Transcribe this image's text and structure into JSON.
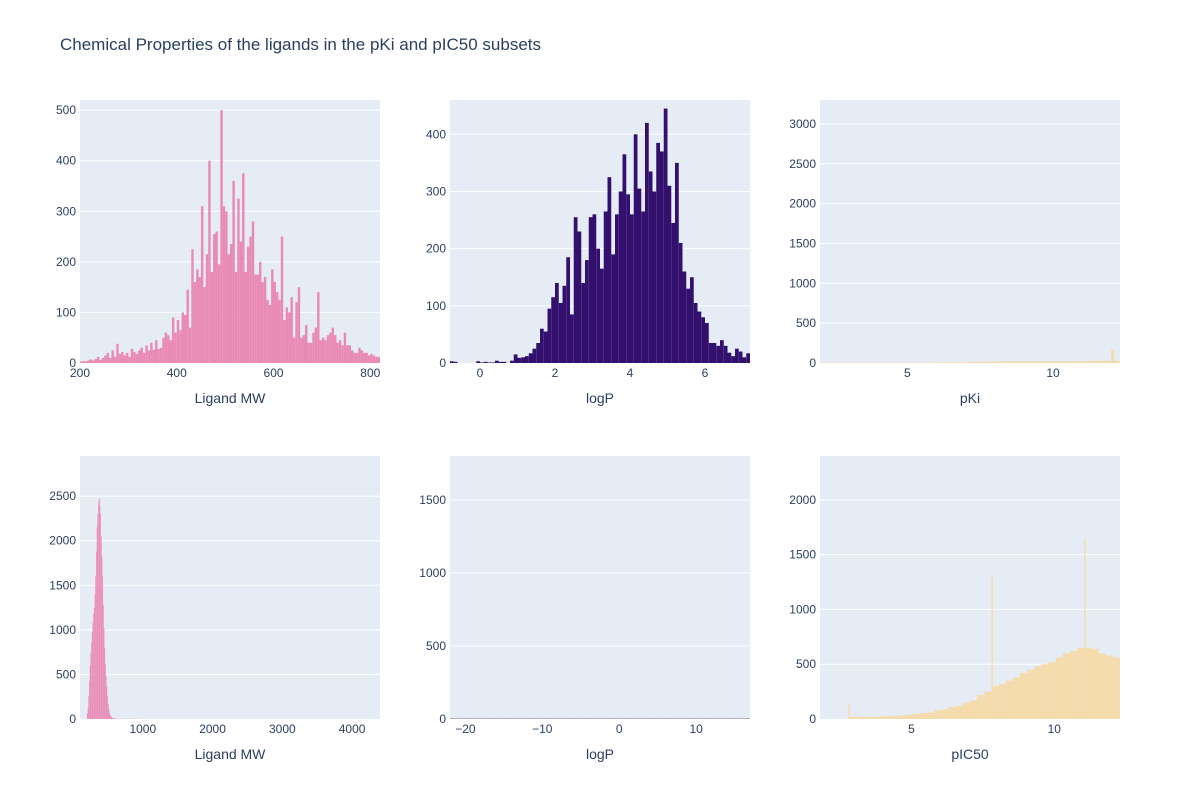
{
  "figure": {
    "title": "Chemical Properties of the ligands in the pKi and pIC50 subsets",
    "background": "#ffffff",
    "plot_background": "#e5ecf6",
    "grid_color": "#ffffff"
  },
  "chart_data": [
    {
      "type": "bar",
      "subset": "pKi",
      "color": "#e98ab5",
      "xlabel": "Ligand MW",
      "ylabel": "",
      "xlim": [
        200,
        820
      ],
      "ylim": [
        0,
        520
      ],
      "xticks": [
        200,
        400,
        600,
        800
      ],
      "yticks": [
        0,
        100,
        200,
        300,
        400,
        500
      ],
      "bin_width": 5,
      "x_start": 200,
      "values": [
        3,
        4,
        3,
        5,
        7,
        5,
        8,
        12,
        6,
        10,
        15,
        20,
        10,
        25,
        12,
        38,
        18,
        22,
        15,
        20,
        12,
        28,
        22,
        18,
        25,
        30,
        20,
        35,
        25,
        40,
        26,
        45,
        28,
        30,
        50,
        60,
        55,
        45,
        90,
        60,
        85,
        65,
        100,
        95,
        145,
        70,
        225,
        160,
        185,
        170,
        310,
        150,
        215,
        400,
        180,
        255,
        260,
        195,
        500,
        310,
        300,
        215,
        235,
        360,
        180,
        325,
        240,
        375,
        180,
        230,
        250,
        280,
        175,
        175,
        200,
        160,
        170,
        125,
        115,
        185,
        160,
        140,
        125,
        250,
        85,
        110,
        100,
        130,
        50,
        120,
        150,
        50,
        55,
        75,
        40,
        40,
        60,
        70,
        140,
        45,
        50,
        45,
        55,
        60,
        70,
        55,
        40,
        45,
        35,
        60,
        35,
        35,
        25,
        20,
        20,
        30,
        25,
        20,
        20,
        15,
        18,
        15,
        12,
        12,
        15,
        8,
        10,
        15,
        6,
        6,
        10,
        5,
        5,
        3,
        8,
        3,
        3,
        2,
        2,
        2,
        3,
        2,
        3,
        2,
        2,
        3,
        2,
        2,
        2,
        2,
        2,
        2,
        2,
        2
      ]
    },
    {
      "type": "bar",
      "subset": "pKi",
      "color": "#33106e",
      "xlabel": "logP",
      "ylabel": "",
      "xlim": [
        -0.8,
        7.2
      ],
      "ylim": [
        0,
        460
      ],
      "xticks": [
        0,
        2,
        4,
        6
      ],
      "yticks": [
        0,
        100,
        200,
        300,
        400
      ],
      "bin_width": 0.1,
      "x_start": -0.8,
      "values": [
        3,
        2,
        0,
        0,
        0,
        0,
        0,
        3,
        1,
        2,
        1,
        1,
        4,
        2,
        2,
        0,
        4,
        15,
        9,
        10,
        12,
        17,
        25,
        35,
        60,
        55,
        95,
        115,
        140,
        105,
        135,
        185,
        85,
        255,
        230,
        140,
        180,
        255,
        260,
        200,
        165,
        265,
        325,
        190,
        260,
        300,
        365,
        295,
        260,
        400,
        305,
        265,
        420,
        335,
        300,
        385,
        370,
        445,
        310,
        245,
        350,
        210,
        160,
        130,
        150,
        105,
        90,
        80,
        70,
        35,
        35,
        30,
        40,
        30,
        18,
        12,
        25,
        20,
        10,
        17,
        2,
        4,
        3,
        3,
        2,
        5,
        5,
        2
      ]
    },
    {
      "type": "bar",
      "subset": "pKi",
      "color": "#f5dba9",
      "xlabel": "pKi",
      "ylabel": "",
      "xlim": [
        2,
        12.3
      ],
      "ylim": [
        0,
        3300
      ],
      "xticks": [
        5,
        10
      ],
      "yticks": [
        0,
        500,
        1000,
        1500,
        2000,
        2500,
        3000
      ],
      "bin_width": 0.1,
      "x_start": 2,
      "values": [
        5,
        5,
        5,
        5,
        5,
        5,
        5,
        5,
        5,
        5,
        5,
        5,
        5,
        5,
        5,
        5,
        5,
        5,
        5,
        5,
        5,
        5,
        5,
        5,
        5,
        5,
        5,
        5,
        5,
        5,
        5,
        5,
        5,
        5,
        5,
        5,
        5,
        5,
        5,
        5,
        10,
        10,
        10,
        10,
        10,
        10,
        10,
        10,
        10,
        10,
        15,
        15,
        15,
        15,
        15,
        15,
        15,
        15,
        15,
        15,
        20,
        20,
        20,
        20,
        20,
        20,
        20,
        20,
        20,
        20,
        20,
        20,
        20,
        20,
        20,
        20,
        20,
        20,
        20,
        20,
        20,
        20,
        20,
        20,
        20,
        20,
        20,
        20,
        20,
        20,
        25,
        25,
        25,
        25,
        25,
        25,
        25,
        25,
        25,
        25,
        170,
        25,
        25,
        25,
        25,
        25,
        30,
        30,
        30,
        30,
        30,
        30,
        30,
        30,
        30,
        35,
        35,
        35,
        35,
        35,
        40,
        40,
        40,
        40,
        40,
        40,
        40,
        40,
        40,
        40,
        40,
        40,
        40,
        40,
        40,
        40,
        40,
        40,
        40,
        40,
        40,
        40,
        40,
        40,
        40,
        40,
        40,
        40,
        40,
        40,
        40,
        40,
        40,
        40,
        40,
        40,
        40,
        40,
        40,
        40,
        40,
        40,
        40,
        40,
        40,
        40,
        40,
        40,
        40,
        40,
        40,
        40,
        40,
        40,
        40,
        40,
        40,
        40,
        40,
        40,
        40,
        40,
        40,
        40,
        40,
        40,
        40,
        40,
        40,
        40
      ]
    },
    {
      "type": "bar",
      "subset": "pIC50",
      "color": "#e98ab5",
      "xlabel": "Ligand MW",
      "ylabel": "",
      "xlim": [
        100,
        4400
      ],
      "ylim": [
        0,
        2950
      ],
      "xticks": [
        1000,
        2000,
        3000,
        4000
      ],
      "yticks": [
        0,
        500,
        1000,
        1500,
        2000,
        2500
      ],
      "bin_width": 10,
      "x_start": 200,
      "values": [
        60,
        120,
        260,
        420,
        600,
        740,
        860,
        980,
        1080,
        1180,
        1250,
        1400,
        1600,
        1880,
        2150,
        2300,
        2450,
        2400,
        2480,
        2300,
        2050,
        1820,
        1600,
        1280,
        1020,
        800,
        620,
        480,
        360,
        260,
        170,
        110,
        70,
        45,
        30,
        20,
        14,
        10,
        8,
        6,
        5,
        4,
        3,
        3,
        2,
        2,
        2,
        2,
        2,
        2,
        2,
        2,
        2,
        2,
        2,
        2,
        2,
        2,
        2,
        2,
        2,
        2,
        2,
        2,
        2,
        2,
        2,
        2,
        2,
        2,
        2,
        2
      ]
    },
    {
      "type": "bar",
      "subset": "pIC50",
      "color": "#33106e",
      "xlabel": "logP",
      "ylabel": "",
      "xlim": [
        -22,
        17
      ],
      "ylim": [
        0,
        1800
      ],
      "xticks": [
        -20,
        -10,
        0,
        10
      ],
      "yticks": [
        0,
        500,
        1000,
        1500
      ],
      "bin_width": 0.2,
      "x_start": -22,
      "values": [
        2,
        2,
        2,
        2,
        2,
        2,
        2,
        2,
        2,
        2,
        2,
        2,
        2,
        2,
        2,
        2,
        2,
        2,
        2,
        2,
        2,
        2,
        2,
        2,
        2,
        2,
        2,
        2,
        2,
        2,
        2,
        2,
        2,
        2,
        2,
        2,
        2,
        2,
        2,
        2,
        2,
        2,
        2,
        2,
        2,
        2,
        2,
        2,
        2,
        2,
        2,
        2,
        2,
        2,
        2,
        2,
        2,
        2,
        2,
        2,
        2,
        2,
        2,
        2,
        2,
        2,
        2,
        2,
        2,
        2,
        2,
        2,
        2,
        2,
        2,
        2,
        2,
        2,
        2,
        2,
        2,
        2,
        2,
        2,
        2,
        2,
        2,
        2,
        2,
        2,
        2,
        2,
        2,
        2,
        2,
        2,
        2,
        2,
        2,
        2,
        2,
        2,
        2,
        2,
        2,
        2,
        2,
        2,
        2,
        2,
        2,
        2,
        2,
        2,
        2,
        2,
        2,
        2,
        2,
        2,
        2,
        2,
        2,
        2,
        2,
        2,
        2,
        2,
        2,
        2,
        2,
        2,
        2,
        2,
        2,
        2,
        2,
        2,
        2,
        2,
        2,
        2,
        2,
        2,
        2,
        2,
        2,
        2,
        2,
        2,
        2,
        2,
        2,
        2,
        2,
        2,
        2,
        2,
        2,
        2,
        2,
        2,
        2,
        2,
        2,
        2,
        2,
        2,
        2,
        2,
        2,
        2,
        2,
        2,
        2,
        2,
        2,
        2,
        2,
        2,
        2,
        2,
        2,
        2,
        2,
        2,
        2,
        2,
        2,
        2,
        2,
        2,
        2,
        2,
        2,
        2,
        2,
        2,
        2,
        2,
        2,
        2,
        2,
        2,
        2,
        2,
        2,
        2,
        2,
        2,
        2,
        2,
        2,
        2,
        2,
        2
      ]
    },
    {
      "type": "bar",
      "subset": "pIC50",
      "color": "#f5dba9",
      "xlabel": "pIC50",
      "ylabel": "",
      "xlim": [
        1.8,
        12.3
      ],
      "ylim": [
        0,
        2400
      ],
      "xticks": [
        5,
        10
      ],
      "yticks": [
        0,
        500,
        1000,
        1500,
        2000
      ],
      "bin_width": 0.05,
      "x_start": 2.8,
      "values": [
        140,
        20,
        20,
        20,
        20,
        20,
        20,
        20,
        20,
        20,
        20,
        20,
        20,
        20,
        20,
        20,
        20,
        20,
        20,
        20,
        25,
        25,
        25,
        25,
        25,
        25,
        25,
        25,
        25,
        25,
        30,
        30,
        30,
        30,
        30,
        30,
        30,
        30,
        30,
        30,
        40,
        40,
        40,
        40,
        40,
        45,
        45,
        45,
        45,
        45,
        55,
        55,
        55,
        55,
        55,
        60,
        60,
        60,
        60,
        60,
        80,
        80,
        80,
        80,
        80,
        90,
        90,
        90,
        90,
        90,
        110,
        110,
        110,
        110,
        110,
        120,
        120,
        120,
        120,
        120,
        150,
        150,
        150,
        150,
        150,
        170,
        170,
        170,
        170,
        170,
        220,
        220,
        220,
        220,
        220,
        250,
        250,
        250,
        250,
        250,
        1300,
        300,
        300,
        300,
        300,
        320,
        320,
        320,
        320,
        320,
        350,
        350,
        350,
        350,
        350,
        380,
        380,
        380,
        380,
        380,
        420,
        420,
        420,
        420,
        420,
        450,
        450,
        450,
        450,
        450,
        480,
        480,
        480,
        480,
        480,
        500,
        500,
        500,
        500,
        500,
        520,
        520,
        520,
        520,
        520,
        560,
        560,
        560,
        560,
        560,
        600,
        600,
        600,
        600,
        600,
        620,
        620,
        620,
        620,
        620,
        650,
        650,
        650,
        650,
        650,
        1650,
        650,
        650,
        650,
        650,
        640,
        640,
        640,
        640,
        640,
        600,
        600,
        600,
        600,
        600,
        580,
        580,
        580,
        580,
        580,
        560,
        560,
        560,
        560,
        560,
        540,
        540,
        540,
        540,
        540,
        520,
        520,
        520,
        520,
        520,
        500,
        500,
        500,
        500,
        500,
        480,
        480,
        480,
        480,
        480,
        460,
        460,
        460,
        460,
        460,
        440,
        440,
        440,
        440,
        440
      ]
    }
  ]
}
